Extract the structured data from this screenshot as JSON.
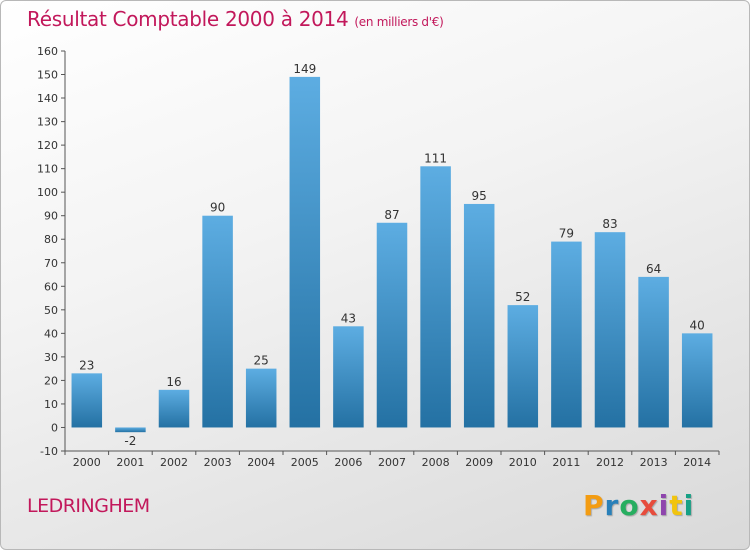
{
  "title": "Résultat Comptable 2000 à 2014",
  "subtitle": "(en milliers d'€)",
  "commune": "LEDRINGHEM",
  "logo": {
    "letters": [
      "P",
      "r",
      "o",
      "x",
      "i",
      "t",
      "i"
    ],
    "colors": [
      "#f39c12",
      "#2980b9",
      "#27ae60",
      "#e74c3c",
      "#8e44ad",
      "#f1c40f",
      "#16a085"
    ]
  },
  "colors": {
    "bar_top": "#5dade2",
    "bar_bottom": "#2471a3",
    "title": "#c2185b",
    "axis_text": "#333333"
  },
  "chart_data": {
    "type": "bar",
    "title": "Résultat Comptable 2000 à 2014",
    "subtitle": "(en milliers d'€)",
    "categories": [
      "2000",
      "2001",
      "2002",
      "2003",
      "2004",
      "2005",
      "2006",
      "2007",
      "2008",
      "2009",
      "2010",
      "2011",
      "2012",
      "2013",
      "2014"
    ],
    "values": [
      23,
      -2,
      16,
      90,
      25,
      149,
      43,
      87,
      111,
      95,
      52,
      79,
      83,
      64,
      40
    ],
    "ylim": [
      -10,
      160
    ],
    "ytick_step": 10,
    "grid": false,
    "legend": "none"
  }
}
